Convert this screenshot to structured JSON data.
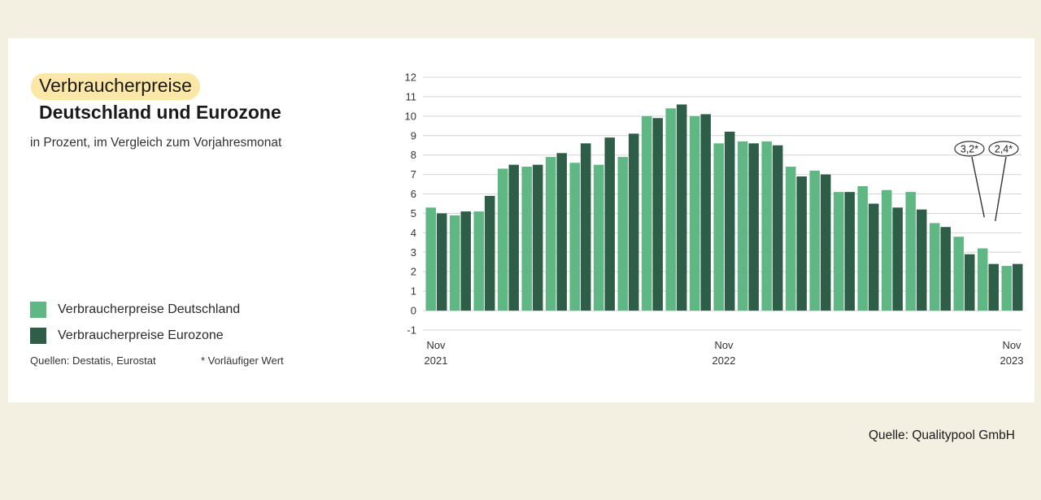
{
  "title": "Verbraucherpreise",
  "subtitle_title": "Deutschland und Eurozone",
  "description": "in Prozent, im Vergleich zum Vorjahresmonat",
  "sources": "Quellen: Destatis, Eurostat",
  "footnote": "* Vorläufiger Wert",
  "credit": "Quelle: Qualitypool GmbH",
  "colors": {
    "germany": "#5fb784",
    "eurozone": "#2f5e48",
    "highlight": "#fbe7a6"
  },
  "chart_data": {
    "type": "bar",
    "ylim": [
      -1,
      12
    ],
    "yticks": [
      -1,
      0,
      1,
      2,
      3,
      4,
      5,
      6,
      7,
      8,
      9,
      10,
      11,
      12
    ],
    "grid": true,
    "legend_position": "left",
    "x": [
      "2021-11",
      "2021-12",
      "2022-01",
      "2022-02",
      "2022-03",
      "2022-04",
      "2022-05",
      "2022-06",
      "2022-07",
      "2022-08",
      "2022-09",
      "2022-10",
      "2022-11",
      "2022-12",
      "2023-01",
      "2023-02",
      "2023-03",
      "2023-04",
      "2023-05",
      "2023-06",
      "2023-07",
      "2023-08",
      "2023-09",
      "2023-10",
      "2023-11"
    ],
    "x_tick_labels": [
      {
        "index": 0,
        "line1": "Nov",
        "line2": "2021"
      },
      {
        "index": 12,
        "line1": "Nov",
        "line2": "2022"
      },
      {
        "index": 24,
        "line1": "Nov",
        "line2": "2023"
      }
    ],
    "series": [
      {
        "name": "Verbraucherpreise Deutschland",
        "color": "#5fb784",
        "values": [
          5.3,
          4.9,
          5.1,
          7.3,
          7.4,
          7.9,
          7.6,
          7.5,
          7.9,
          10.0,
          10.4,
          10.0,
          8.6,
          8.7,
          8.7,
          7.4,
          7.2,
          6.1,
          6.4,
          6.2,
          6.1,
          4.5,
          3.8,
          3.2,
          2.3
        ]
      },
      {
        "name": "Verbraucherpreise Eurozone",
        "color": "#2f5e48",
        "values": [
          5.0,
          5.1,
          5.9,
          7.5,
          7.5,
          8.1,
          8.6,
          8.9,
          9.1,
          9.9,
          10.6,
          10.1,
          9.2,
          8.6,
          8.5,
          6.9,
          7.0,
          6.1,
          5.5,
          5.3,
          5.2,
          4.3,
          2.9,
          2.4,
          2.4
        ]
      }
    ],
    "annotations": [
      {
        "label": "3,2*",
        "target_index": 23
      },
      {
        "label": "2,4*",
        "target_index": 23
      }
    ]
  }
}
